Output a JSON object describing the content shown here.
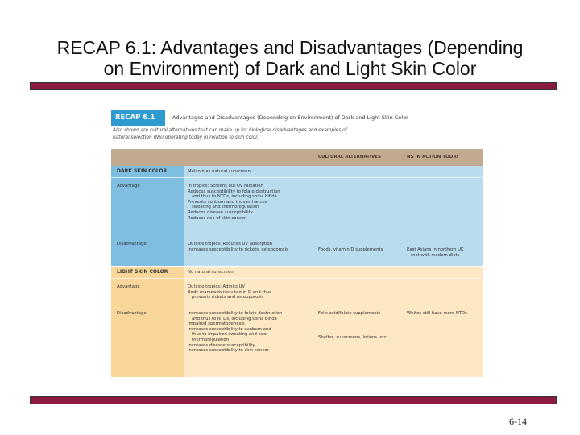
{
  "slide": {
    "title_line1": "RECAP 6.1: Advantages and Disadvantages (Depending",
    "title_line2": "on Environment) of Dark and Light Skin Color",
    "page_number": "6-14",
    "bar_color": "#8a1a3e"
  },
  "figure": {
    "tag": "RECAP 6.1",
    "caption": "Advantages and Disadvantages (Depending on Environment) of Dark and Light Skin Color",
    "note_line1": "Also shown are cultural alternatives that can make up for biological disadvantages and examples of",
    "note_line2": "natural selection (NS) operating today in relation to skin color.",
    "columns": {
      "cultural": "CULTURAL ALTERNATIVES",
      "ns": "NS IN ACTION TODAY"
    },
    "colors": {
      "tag": "#2d9ad0",
      "dark_section": "#b9dcef",
      "light_section": "#fce8c3",
      "header": "#c2aa91"
    },
    "dark": {
      "label": "DARK SKIN COLOR",
      "summary": "Melanin as natural sunscreen",
      "advantage_label": "Advantage",
      "advantages": [
        "In tropics: Screens out UV radiation",
        "Reduces susceptibility to folate destruction",
        "   and thus to NTDs, including spina bifida",
        "Prevents sunburn and thus enhances",
        "   sweating and thermoregulation",
        "Reduces disease susceptibility",
        "Reduces risk of skin cancer"
      ],
      "disadvantage_label": "Disadvantage",
      "disadvantages": [
        "Outside tropics: Reduces UV absorption",
        "Increases susceptibility to rickets, osteoporosis"
      ],
      "cultural": "Foods, vitamin D supplements",
      "ns_line1": "East Asians in northern UK",
      "ns_line2": "   (not with modern diets"
    },
    "light": {
      "label": "LIGHT SKIN COLOR",
      "summary": "No natural sunscreen",
      "advantage_label": "Advantage",
      "advantages": [
        "Outside tropics: Admits UV",
        "Body manufactures vitamin D and thus",
        "   prevents rickets and osteoporosis"
      ],
      "disadvantage_label": "Disadvantage",
      "disadvantages": [
        "Increases susceptibility to folate destruction",
        "   and thus to NTDs, including spina bifida",
        "Impaired spermatogenesis",
        "Increases susceptibility to sunburn and",
        "   thus to impaired sweating and poor",
        "   thermoregulation",
        "Increases disease susceptibility",
        "Increases susceptibility to skin cancer"
      ],
      "cultural1": "Folic acid/folate supplements",
      "cultural2": "Shelter, sunscreens, lotions, etc.",
      "ns": "Whites still have more NTDs"
    }
  }
}
